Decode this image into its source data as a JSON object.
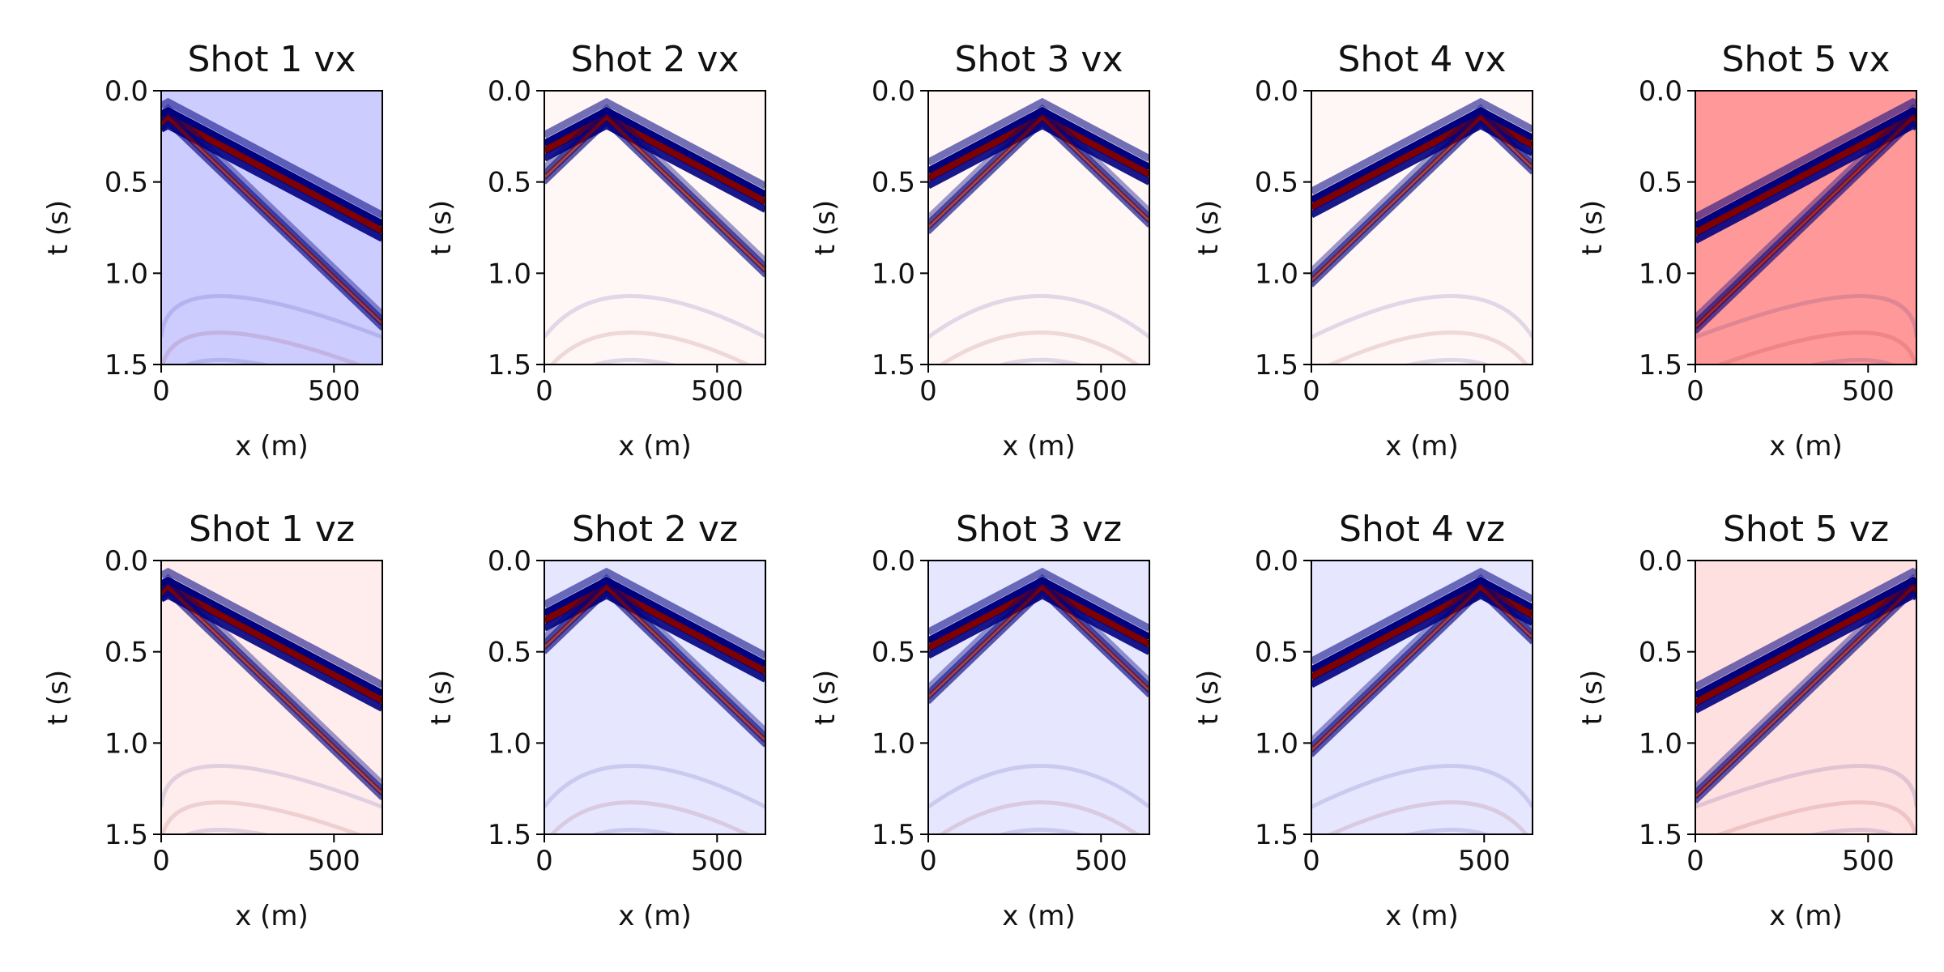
{
  "chart_data": {
    "type": "heatmap",
    "layout": {
      "rows": 2,
      "cols": 5
    },
    "colormap": {
      "negative": "#00007f",
      "zero": "#ffffff",
      "positive": "#7f0000"
    },
    "common": {
      "xlabel": "x (m)",
      "ylabel": "t (s)",
      "xlim": [
        0,
        640
      ],
      "ylim": [
        1.5,
        0.0
      ],
      "xticks": [
        0,
        500
      ],
      "xtick_labels": [
        "0",
        "500"
      ],
      "yticks": [
        0.0,
        0.5,
        1.0,
        1.5
      ],
      "ytick_labels": [
        "0.0",
        "0.5",
        "1.0",
        "1.5"
      ],
      "first_arrival_onset_s": 0.15,
      "wave_speeds_mps": [
        1000,
        550
      ]
    },
    "panels": [
      {
        "title": "Shot 1 vx",
        "source_x": 20,
        "background": "#ccccff"
      },
      {
        "title": "Shot 2 vx",
        "source_x": 180,
        "background": "#fff6f6"
      },
      {
        "title": "Shot 3 vx",
        "source_x": 330,
        "background": "#fff6f6"
      },
      {
        "title": "Shot 4 vx",
        "source_x": 490,
        "background": "#fff6f6"
      },
      {
        "title": "Shot 5 vx",
        "source_x": 630,
        "background": "#ff9898"
      },
      {
        "title": "Shot 1 vz",
        "source_x": 20,
        "background": "#ffeded"
      },
      {
        "title": "Shot 2 vz",
        "source_x": 180,
        "background": "#e6e6ff"
      },
      {
        "title": "Shot 3 vz",
        "source_x": 330,
        "background": "#e6e6ff"
      },
      {
        "title": "Shot 4 vz",
        "source_x": 490,
        "background": "#e6e6ff"
      },
      {
        "title": "Shot 5 vz",
        "source_x": 630,
        "background": "#ffe0e0"
      }
    ]
  }
}
